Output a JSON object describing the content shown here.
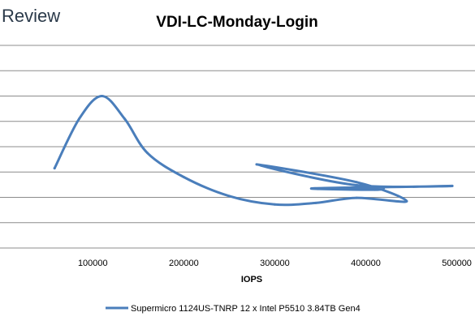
{
  "brand": "Review",
  "colors": {
    "series": "#4a7ebb",
    "grid": "#8c8c8c",
    "brand": "#2b3a4a"
  },
  "chart_data": {
    "type": "line",
    "title": "VDI-LC-Monday-Login",
    "xlabel": "IOPS",
    "ylabel": "",
    "xlim": [
      0,
      520000
    ],
    "ylim": [
      0,
      8
    ],
    "x_ticks": [
      100000,
      200000,
      300000,
      400000,
      500000
    ],
    "x_tick_labels": [
      "100000",
      "200000",
      "300000",
      "400000",
      "500000"
    ],
    "grid": true,
    "legend": "bottom",
    "series": [
      {
        "name": "Supermicro 1124US-TNRP 12 x Intel P5510 3.84TB Gen4",
        "color": "#4a7ebb",
        "points": [
          [
            58000,
            3.15
          ],
          [
            85000,
            5.1
          ],
          [
            110000,
            6.0
          ],
          [
            135000,
            5.1
          ],
          [
            160000,
            3.75
          ],
          [
            200000,
            2.8
          ],
          [
            250000,
            2.05
          ],
          [
            300000,
            1.72
          ],
          [
            345000,
            1.78
          ],
          [
            390000,
            1.98
          ],
          [
            445000,
            1.85
          ],
          [
            390000,
            2.6
          ],
          [
            280000,
            3.3
          ],
          [
            390000,
            2.48
          ],
          [
            495000,
            2.45
          ],
          [
            410000,
            2.4
          ],
          [
            340000,
            2.35
          ],
          [
            410000,
            2.3
          ],
          [
            420000,
            2.38
          ]
        ]
      }
    ]
  }
}
